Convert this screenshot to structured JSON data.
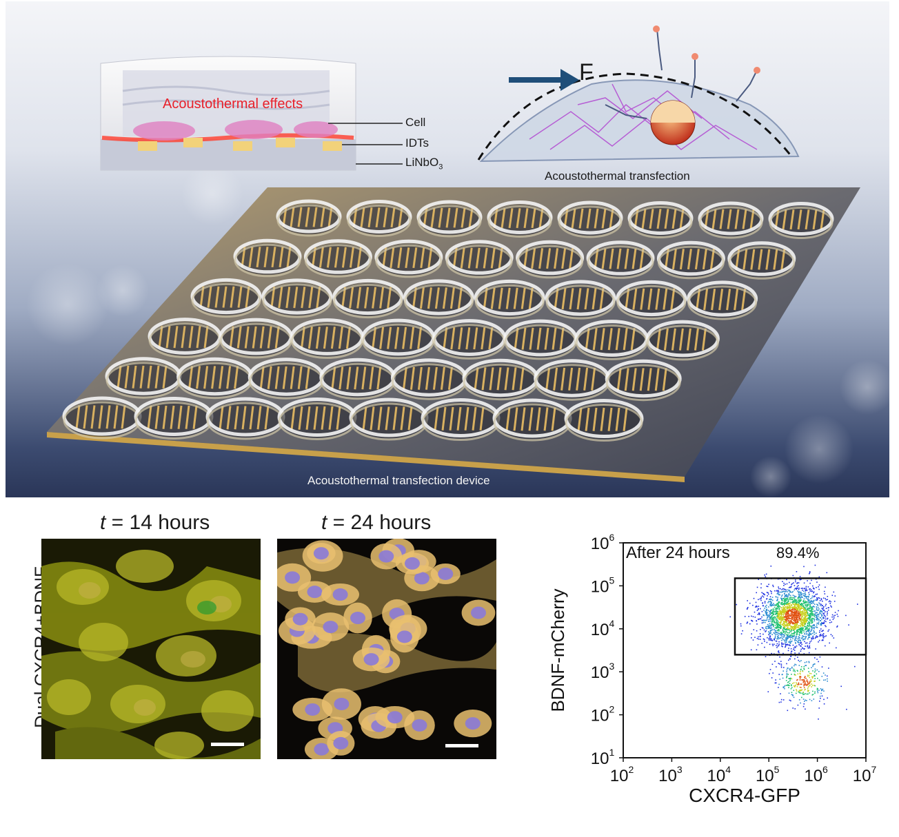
{
  "schematic": {
    "effects_label": "Acoustothermal effects",
    "layer_labels": {
      "cell": "Cell",
      "idts": "IDTs",
      "substrate_base": "LiNbO",
      "substrate_sub": "3"
    },
    "force_label": "F",
    "mechanism_label": "Acoustothermal transfection",
    "device_label": "Acoustothermal transfection device",
    "colors": {
      "effects": "#e8202a",
      "arrow": "#1f4e79",
      "cytoskeleton": "#b040d0"
    }
  },
  "micrographs": {
    "row_label": "Dual CXCR4+BDNF",
    "panels": [
      {
        "t_symbol": "t",
        "time_text": " = 14 hours"
      },
      {
        "t_symbol": "t",
        "time_text": " = 24 hours"
      }
    ]
  },
  "chart_data": {
    "type": "scatter",
    "annotation": "After 24 hours",
    "gate_percent": "89.4%",
    "xlabel": "CXCR4-GFP",
    "ylabel": "BDNF-mCherry",
    "x_scale": "log",
    "y_scale": "log",
    "xlim": [
      100,
      10000000
    ],
    "ylim": [
      10,
      1000000
    ],
    "x_ticks": [
      {
        "base": "10",
        "exp": "2"
      },
      {
        "base": "10",
        "exp": "3"
      },
      {
        "base": "10",
        "exp": "4"
      },
      {
        "base": "10",
        "exp": "5"
      },
      {
        "base": "10",
        "exp": "6"
      },
      {
        "base": "10",
        "exp": "7"
      }
    ],
    "y_ticks": [
      {
        "base": "10",
        "exp": "1"
      },
      {
        "base": "10",
        "exp": "2"
      },
      {
        "base": "10",
        "exp": "3"
      },
      {
        "base": "10",
        "exp": "4"
      },
      {
        "base": "10",
        "exp": "5"
      },
      {
        "base": "10",
        "exp": "6"
      }
    ],
    "gate": {
      "x_range": [
        20000,
        20000000
      ],
      "y_range": [
        2500,
        150000
      ]
    },
    "populations": [
      {
        "center_x": 300000,
        "center_y": 20000,
        "spread_log_decades": 0.35,
        "share": 0.88
      },
      {
        "center_x": 500000,
        "center_y": 600,
        "spread_log_decades": 0.28,
        "share": 0.12
      }
    ],
    "density_colors": [
      "#1b2ee0",
      "#2a8ad0",
      "#20c070",
      "#c8d020",
      "#e05010"
    ],
    "grid": false
  }
}
